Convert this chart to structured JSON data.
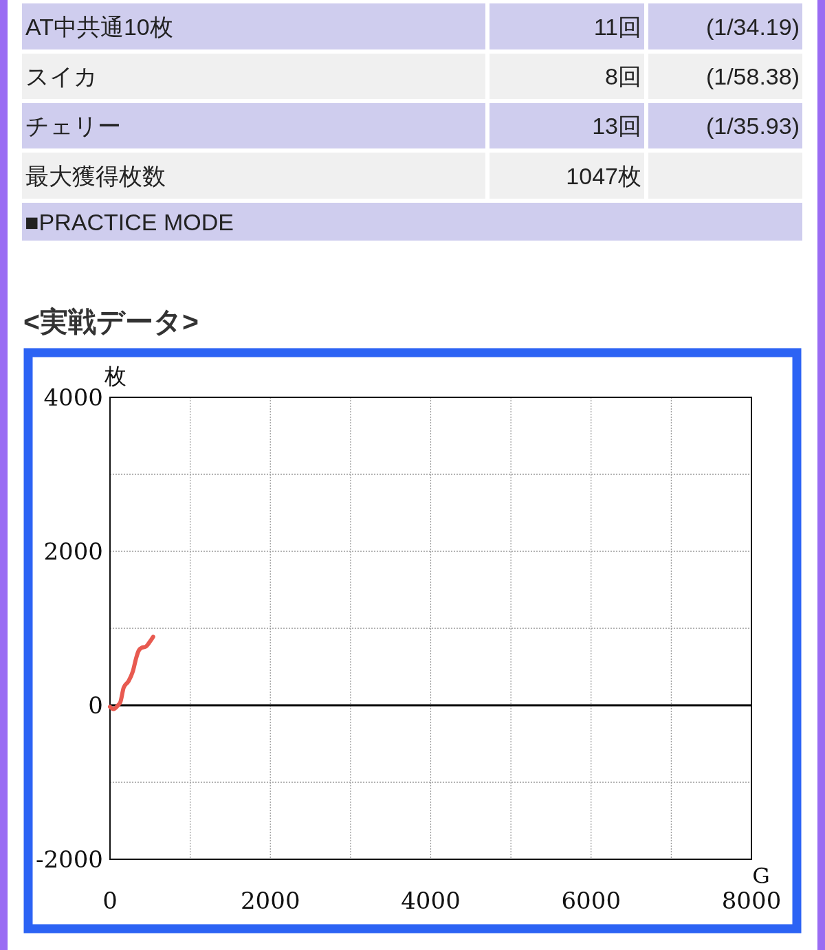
{
  "chart_data": [
    {
      "type": "other",
      "annotations": [
        "AT中共通10枚",
        "11回",
        "(1/34.19)",
        "スイカ",
        "8回",
        "(1/58.38)",
        "チェリー",
        "13回",
        "(1/35.93)",
        "最大獲得枚数",
        "1047枚",
        "■PRACTICE MODE"
      ]
    },
    {
      "type": "line",
      "title": "<実戦データ>",
      "xlabel": "G",
      "ylabel": "枚",
      "x": [
        0,
        43,
        100,
        129,
        171,
        229,
        285,
        328,
        358,
        400,
        443,
        500,
        538
      ],
      "series": [
        {
          "color": "#e85a50",
          "values": [
            -20,
            -50,
            0,
            40,
            230,
            310,
            440,
            620,
            710,
            750,
            760,
            830,
            890
          ]
        }
      ],
      "xlim": [
        0,
        8000
      ],
      "xticks": [
        0,
        {
          "value": 1000,
          "label": null
        },
        2000,
        {
          "value": 3000,
          "label": null
        },
        4000,
        {
          "value": 5000,
          "label": null
        },
        6000,
        {
          "value": 7000,
          "label": null
        },
        8000
      ],
      "ylim": [
        -2000,
        4000
      ],
      "yticks": [
        -2000,
        {
          "value": -1000,
          "label": null
        },
        0,
        {
          "value": 1000,
          "label": null
        },
        2000,
        {
          "value": 3000,
          "label": null
        },
        4000
      ],
      "grid": true,
      "ref_lines": [
        {
          "axis": "y",
          "value": 0,
          "color": "#000000"
        }
      ]
    }
  ]
}
